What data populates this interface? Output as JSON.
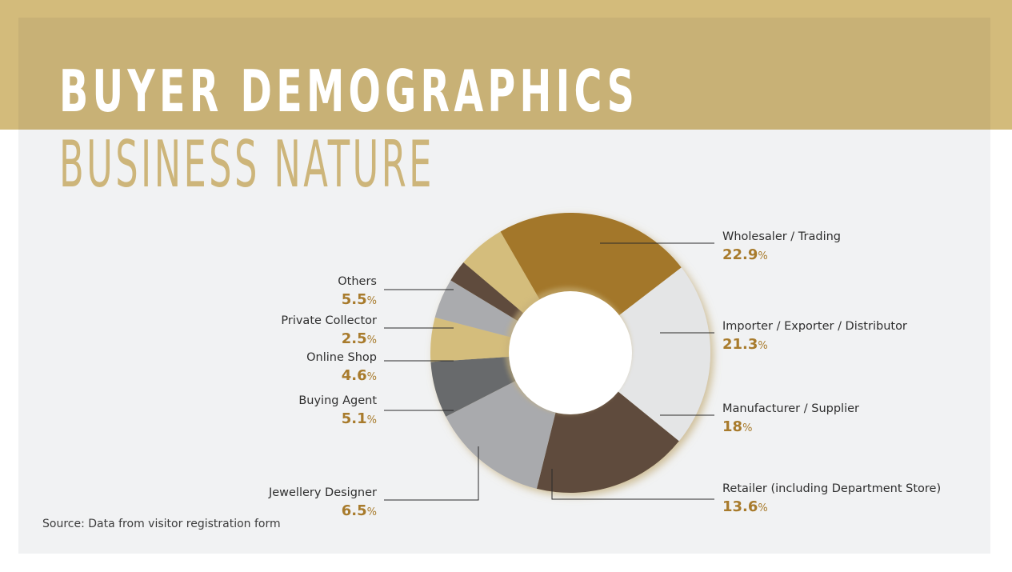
{
  "title": "BUYER DEMOGRAPHICS",
  "subtitle": "BUSINESS NATURE",
  "source": "Source: Data from visitor registration form",
  "colors": {
    "accent": "#a87b2c",
    "gold_band": "#d3bb7b",
    "panel": "#f1f2f3"
  },
  "chart_data": {
    "type": "pie",
    "donut": true,
    "unit": "%",
    "slices": [
      {
        "label": "Wholesaler / Trading",
        "value": 22.9,
        "color": "#a3772b"
      },
      {
        "label": "Importer / Exporter / Distributor",
        "value": 21.3,
        "color": "#e4e5e6"
      },
      {
        "label": "Manufacturer / Supplier",
        "value": 18,
        "color": "#5e4c3c"
      },
      {
        "label": "Retailer (including Department Store)",
        "value": 13.6,
        "color": "#a9aaad"
      },
      {
        "label": "Jewellery Designer",
        "value": 6.5,
        "color": "#686b6c"
      },
      {
        "label": "Buying Agent",
        "value": 5.1,
        "color": "#d4bd7c"
      },
      {
        "label": "Online Shop",
        "value": 4.6,
        "color": "#aaabae"
      },
      {
        "label": "Private Collector",
        "value": 2.5,
        "color": "#5e4c3c"
      },
      {
        "label": "Others",
        "value": 5.5,
        "color": "#d4bd7c"
      }
    ]
  }
}
